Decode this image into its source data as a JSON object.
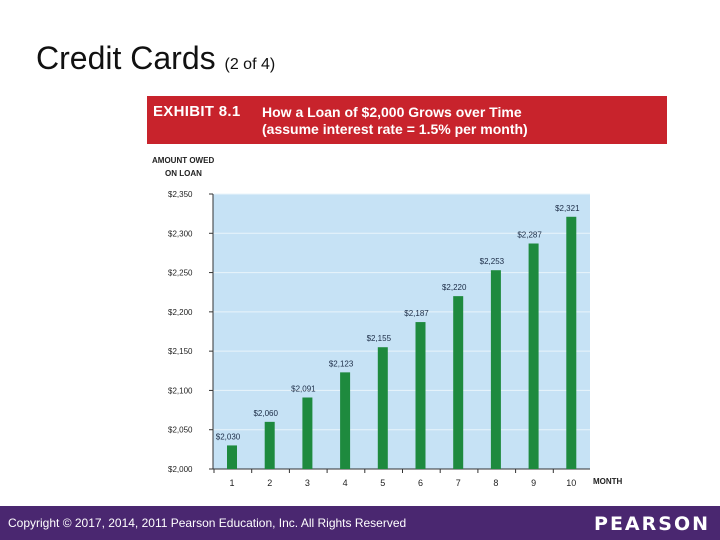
{
  "slide": {
    "title": "Credit Cards",
    "subtitle": "(2 of 4)"
  },
  "exhibit": {
    "label": "EXHIBIT 8.1",
    "caption_line1": "How a Loan of $2,000 Grows over Time",
    "caption_line2": "(assume interest rate = 1.5% per month)"
  },
  "chart_data": {
    "type": "bar",
    "ylabel_line1": "AMOUNT OWED",
    "ylabel_line2": "ON LOAN",
    "xlabel": "MONTH",
    "categories": [
      "1",
      "2",
      "3",
      "4",
      "5",
      "6",
      "7",
      "8",
      "9",
      "10"
    ],
    "values": [
      2030,
      2060,
      2091,
      2123,
      2155,
      2187,
      2220,
      2253,
      2287,
      2321
    ],
    "data_labels": [
      "$2,030",
      "$2,060",
      "$2,091",
      "$2,123",
      "$2,155",
      "$2,187",
      "$2,220",
      "$2,253",
      "$2,287",
      "$2,321"
    ],
    "ylim": [
      2000,
      2350
    ],
    "yticks": [
      2000,
      2050,
      2100,
      2150,
      2200,
      2250,
      2300,
      2350
    ],
    "ytick_labels": [
      "$2,000",
      "$2,050",
      "$2,100",
      "$2,150",
      "$2,200",
      "$2,250",
      "$2,300",
      "$2,350"
    ],
    "grid": true,
    "colors": {
      "bar": "#1e8a3e",
      "plot_bg": "#c6e2f5",
      "gridline": "#e9f4fb"
    }
  },
  "footer": {
    "copyright": "Copyright © 2017, 2014, 2011 Pearson Education, Inc. All Rights Reserved",
    "logo": "PEARSON",
    "color": "#4a2770"
  }
}
